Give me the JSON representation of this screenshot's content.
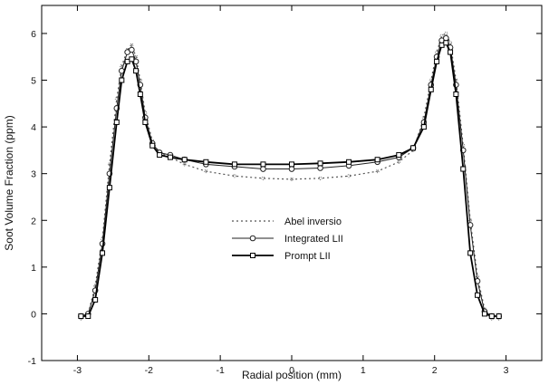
{
  "chart_data": {
    "type": "line",
    "title": "",
    "xlabel": "Radial position (mm)",
    "ylabel": "Soot Volume Fraction (ppm)",
    "xlim": [
      -3.5,
      3.5
    ],
    "ylim": [
      -1,
      6.6
    ],
    "xticks": [
      -3,
      -2,
      -1,
      0,
      1,
      2,
      3
    ],
    "yticks": [
      -1,
      0,
      1,
      2,
      3,
      4,
      5,
      6
    ],
    "legend_position": "center",
    "grid": false,
    "series": [
      {
        "name": "Abel inversio",
        "style": "dotted",
        "color": "#555555",
        "x": [
          -2.95,
          -2.85,
          -2.75,
          -2.65,
          -2.55,
          -2.45,
          -2.38,
          -2.3,
          -2.24,
          -2.18,
          -2.12,
          -2.05,
          -1.95,
          -1.85,
          -1.7,
          -1.5,
          -1.2,
          -0.8,
          -0.4,
          0.0,
          0.4,
          0.8,
          1.2,
          1.5,
          1.7,
          1.85,
          1.95,
          2.03,
          2.1,
          2.16,
          2.22,
          2.3,
          2.4,
          2.5,
          2.6,
          2.7,
          2.8,
          2.9
        ],
        "y": [
          -0.1,
          0.0,
          0.6,
          1.6,
          3.2,
          4.6,
          5.3,
          5.65,
          5.75,
          5.5,
          5.0,
          4.3,
          3.7,
          3.45,
          3.35,
          3.2,
          3.05,
          2.95,
          2.9,
          2.88,
          2.9,
          2.95,
          3.05,
          3.25,
          3.5,
          4.2,
          5.0,
          5.6,
          5.95,
          6.0,
          5.8,
          5.0,
          3.6,
          2.0,
          0.8,
          0.1,
          -0.1,
          -0.1
        ]
      },
      {
        "name": "Integrated LII",
        "style": "circle",
        "color": "#222222",
        "x": [
          -2.95,
          -2.85,
          -2.75,
          -2.65,
          -2.55,
          -2.45,
          -2.38,
          -2.3,
          -2.24,
          -2.18,
          -2.12,
          -2.05,
          -1.95,
          -1.85,
          -1.7,
          -1.5,
          -1.2,
          -0.8,
          -0.4,
          0.0,
          0.4,
          0.8,
          1.2,
          1.5,
          1.7,
          1.85,
          1.95,
          2.03,
          2.1,
          2.16,
          2.22,
          2.3,
          2.4,
          2.5,
          2.6,
          2.7,
          2.8,
          2.9
        ],
        "y": [
          -0.05,
          0.0,
          0.5,
          1.5,
          3.0,
          4.4,
          5.2,
          5.6,
          5.65,
          5.4,
          4.9,
          4.2,
          3.65,
          3.45,
          3.4,
          3.3,
          3.2,
          3.15,
          3.1,
          3.1,
          3.12,
          3.17,
          3.25,
          3.35,
          3.55,
          4.1,
          4.9,
          5.5,
          5.85,
          5.9,
          5.7,
          4.9,
          3.5,
          1.9,
          0.7,
          0.05,
          -0.05,
          -0.05
        ]
      },
      {
        "name": "Prompt LII",
        "style": "square",
        "color": "#000000",
        "x": [
          -2.95,
          -2.85,
          -2.75,
          -2.65,
          -2.55,
          -2.45,
          -2.38,
          -2.3,
          -2.24,
          -2.18,
          -2.12,
          -2.05,
          -1.95,
          -1.85,
          -1.7,
          -1.5,
          -1.2,
          -0.8,
          -0.4,
          0.0,
          0.4,
          0.8,
          1.2,
          1.5,
          1.7,
          1.85,
          1.95,
          2.03,
          2.1,
          2.16,
          2.22,
          2.3,
          2.4,
          2.5,
          2.6,
          2.7,
          2.8,
          2.9
        ],
        "y": [
          -0.05,
          -0.05,
          0.3,
          1.3,
          2.7,
          4.1,
          5.0,
          5.4,
          5.45,
          5.2,
          4.7,
          4.1,
          3.6,
          3.4,
          3.35,
          3.3,
          3.25,
          3.2,
          3.2,
          3.2,
          3.22,
          3.25,
          3.3,
          3.4,
          3.55,
          4.0,
          4.8,
          5.4,
          5.75,
          5.8,
          5.6,
          4.7,
          3.1,
          1.3,
          0.4,
          0.0,
          -0.05,
          -0.05
        ]
      }
    ]
  }
}
